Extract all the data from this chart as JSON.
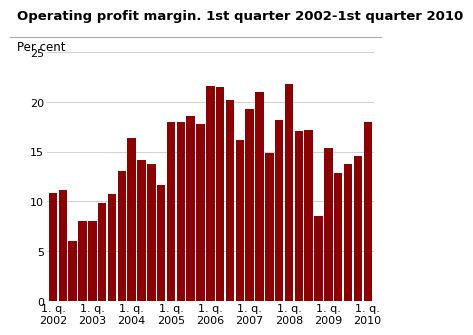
{
  "title": "Operating profit margin. 1st quarter 2002-1st quarter 2010",
  "ylabel": "Per cent",
  "bar_color": "#8B0000",
  "ylim": [
    0,
    25
  ],
  "yticks": [
    0,
    5,
    10,
    15,
    20,
    25
  ],
  "values": [
    10.8,
    11.1,
    6.0,
    8.0,
    8.0,
    9.8,
    10.7,
    13.0,
    16.4,
    14.2,
    13.8,
    11.6,
    18.0,
    18.0,
    18.6,
    17.8,
    21.6,
    21.5,
    20.2,
    16.2,
    19.3,
    21.0,
    14.9,
    18.2,
    21.8,
    17.1,
    17.2,
    8.5,
    15.4,
    12.8,
    13.7,
    14.6,
    18.0
  ],
  "x_tick_positions": [
    0,
    4,
    8,
    12,
    16,
    20,
    24,
    28,
    32
  ],
  "x_tick_labels": [
    "1. q.\n2002",
    "1. q.\n2003",
    "1. q.\n2004",
    "1. q.\n2005",
    "1. q.\n2006",
    "1. q.\n2007",
    "1. q.\n2008",
    "1. q.\n2009",
    "1. q.\n2010"
  ],
  "background_color": "#ffffff",
  "grid_color": "#d0d0d0",
  "title_fontsize": 9.5,
  "ylabel_fontsize": 8.5,
  "tick_fontsize": 8,
  "bar_width": 0.85
}
